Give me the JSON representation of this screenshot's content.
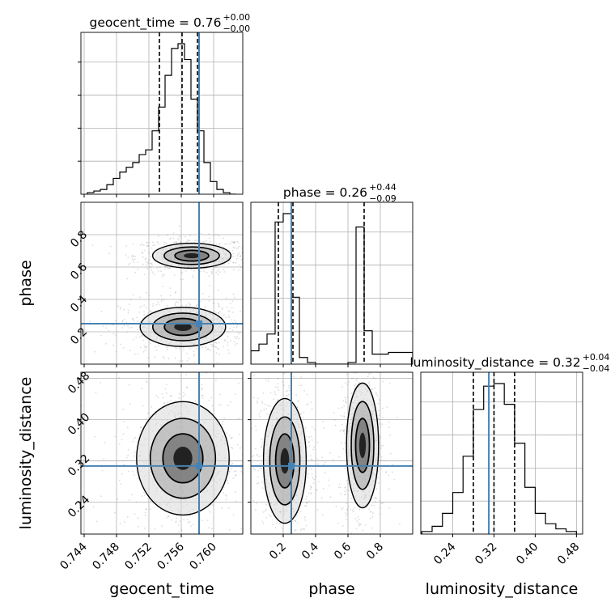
{
  "chart_data": {
    "type": "corner",
    "parameters": [
      "geocent_time",
      "phase",
      "luminosity_distance"
    ],
    "axis_labels": {
      "geocent_time": "geocent_time",
      "phase": "phase",
      "luminosity_distance": "luminosity_distance"
    },
    "titles": [
      {
        "param": "geocent_time",
        "name": "geocent_time",
        "median": "0.76",
        "plus": "+0.00",
        "minus": "−0.00"
      },
      {
        "param": "phase",
        "name": "phase",
        "median": "0.26",
        "plus": "+0.44",
        "minus": "−0.09"
      },
      {
        "param": "luminosity_distance",
        "name": "luminosity_distance",
        "median": "0.32",
        "plus": "+0.04",
        "minus": "−0.04"
      }
    ],
    "ranges": {
      "geocent_time": [
        0.7436,
        0.7636
      ],
      "phase": [
        0.0,
        1.0
      ],
      "luminosity_distance": [
        0.178,
        0.492
      ]
    },
    "ticks": {
      "geocent_time": {
        "values": [
          0.744,
          0.748,
          0.752,
          0.756,
          0.76
        ],
        "labels": [
          "0.744",
          "0.748",
          "0.752",
          "0.756",
          "0.760"
        ]
      },
      "phase": {
        "values": [
          0.2,
          0.4,
          0.6,
          0.8
        ],
        "labels": [
          "0.2",
          "0.4",
          "0.6",
          "0.8"
        ]
      },
      "luminosity_distance": {
        "values": [
          0.24,
          0.32,
          0.4,
          0.48
        ],
        "labels": [
          "0.24",
          "0.32",
          "0.40",
          "0.48"
        ]
      }
    },
    "truths": {
      "geocent_time": 0.7582,
      "phase": 0.25,
      "luminosity_distance": 0.31
    },
    "quantiles": {
      "geocent_time": [
        0.7533,
        0.7561,
        0.758
      ],
      "phase": [
        0.17,
        0.26,
        0.7
      ],
      "luminosity_distance": [
        0.28,
        0.32,
        0.36
      ]
    },
    "histograms": {
      "geocent_time": {
        "edges": [
          0.7444,
          0.7452,
          0.746,
          0.7468,
          0.7476,
          0.7484,
          0.7492,
          0.75,
          0.7508,
          0.7516,
          0.7524,
          0.7532,
          0.754,
          0.7548,
          0.7556,
          0.7564,
          0.7572,
          0.758,
          0.7588,
          0.7596,
          0.7604,
          0.7612,
          0.762,
          0.7628
        ],
        "counts": [
          1,
          2,
          3,
          6,
          10,
          14,
          17,
          20,
          25,
          28,
          40,
          55,
          75,
          92,
          95,
          85,
          60,
          40,
          20,
          8,
          3,
          1,
          0
        ]
      },
      "phase": {
        "edges": [
          0.0,
          0.05,
          0.1,
          0.15,
          0.2,
          0.25,
          0.3,
          0.35,
          0.4,
          0.45,
          0.5,
          0.55,
          0.6,
          0.65,
          0.7,
          0.75,
          0.8,
          0.85,
          0.9,
          0.95,
          1.0
        ],
        "counts": [
          8,
          12,
          18,
          85,
          90,
          40,
          4,
          1,
          0,
          0,
          0,
          0,
          1,
          82,
          20,
          6,
          6,
          7,
          7,
          7
        ]
      },
      "luminosity_distance": {
        "edges": [
          0.18,
          0.2,
          0.22,
          0.24,
          0.26,
          0.28,
          0.3,
          0.32,
          0.34,
          0.36,
          0.38,
          0.4,
          0.42,
          0.44,
          0.46,
          0.48
        ],
        "counts": [
          1,
          3,
          8,
          16,
          30,
          48,
          57,
          58,
          50,
          35,
          18,
          8,
          4,
          2,
          1
        ]
      }
    },
    "contours": [
      {
        "x": "geocent_time",
        "y": "phase",
        "blobs": [
          {
            "cx": 0.7573,
            "cy": 0.67,
            "rx": 0.0022,
            "ry": 0.035
          },
          {
            "cx": 0.7562,
            "cy": 0.23,
            "rx": 0.0024,
            "ry": 0.055
          }
        ]
      },
      {
        "x": "geocent_time",
        "y": "luminosity_distance",
        "blobs": [
          {
            "cx": 0.7562,
            "cy": 0.325,
            "rx": 0.0026,
            "ry": 0.05
          }
        ]
      },
      {
        "x": "phase",
        "y": "luminosity_distance",
        "blobs": [
          {
            "cx": 0.21,
            "cy": 0.32,
            "rx": 0.06,
            "ry": 0.055
          },
          {
            "cx": 0.69,
            "cy": 0.35,
            "rx": 0.045,
            "ry": 0.055
          }
        ]
      }
    ],
    "grid": true,
    "truth_color": "#4682b4",
    "quantile_color": "#000000",
    "point_color": "#9a9a9a"
  }
}
